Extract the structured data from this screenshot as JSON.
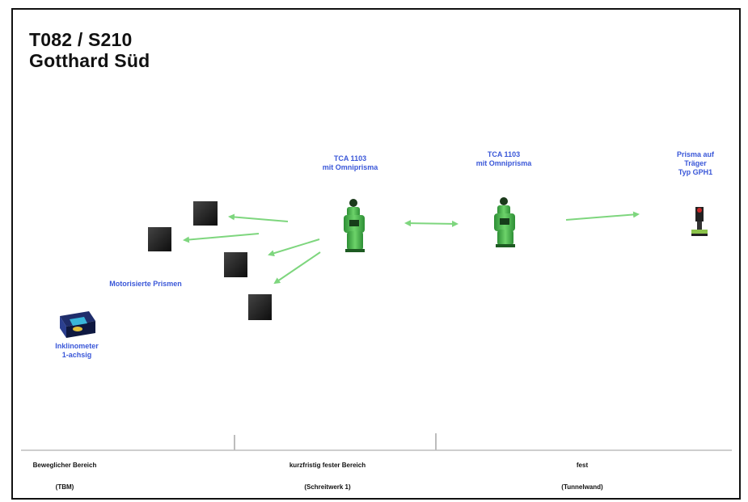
{
  "title": {
    "line1": "T082 / S210",
    "line2": "Gotthard Süd"
  },
  "labels": {
    "tca_left": [
      "TCA 1103",
      "mit Omniprisma"
    ],
    "tca_right": [
      "TCA 1103",
      "mit Omniprisma"
    ],
    "prisma": [
      "Prisma auf",
      "Träger",
      "Typ GPH1"
    ],
    "prisms": "Motorisierte Prismen",
    "inclinometer": [
      "Inklinometer",
      "1-achsig"
    ]
  },
  "zones": [
    {
      "name": "Beweglicher Bereich",
      "sub": "(TBM)"
    },
    {
      "name": "kurzfristig fester Bereich",
      "sub": "(Schreitwerk 1)"
    },
    {
      "name": "fest",
      "sub": "(Tunnelwand)"
    }
  ],
  "colors": {
    "accent_blue": "#3a57d8",
    "arrow_green": "#7ed67e",
    "instrument_green": "#49b84a",
    "prism_black": "#1a1a1a"
  },
  "icons": [
    "total-station-icon",
    "prism-cube-icon",
    "inclinometer-icon",
    "reflector-prism-icon"
  ]
}
